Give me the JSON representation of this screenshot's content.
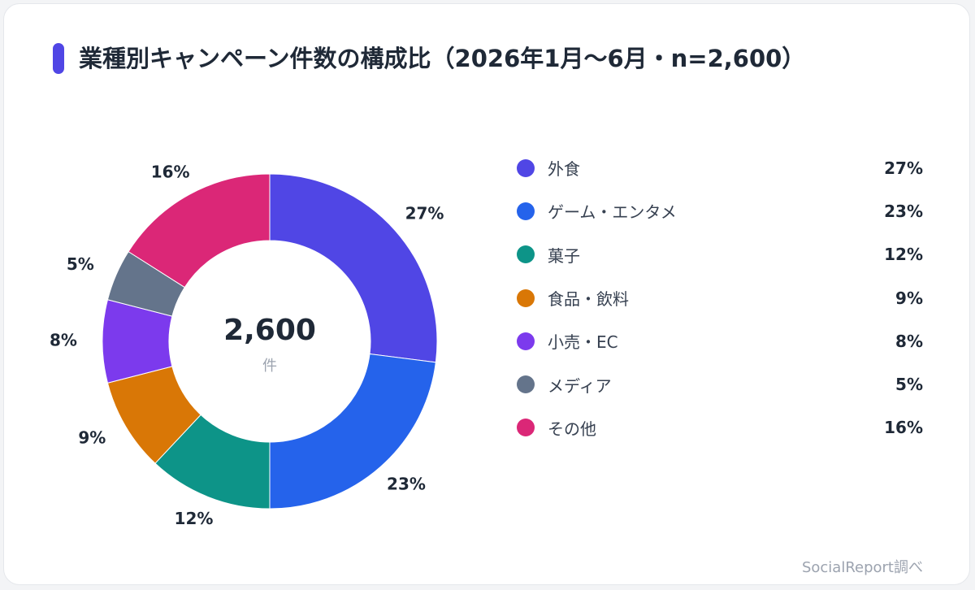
{
  "header": {
    "title": "業種別キャンペーン件数の構成比（2026年1月〜6月・n=2,600）"
  },
  "center": {
    "value": "2,600",
    "unit": "件"
  },
  "source": "SocialReport調べ",
  "chart_data": {
    "type": "pie",
    "donut": true,
    "total": 2600,
    "categories": [
      "外食",
      "ゲーム・エンタメ",
      "菓子",
      "食品・飲料",
      "小売・EC",
      "メディア",
      "その他"
    ],
    "values": [
      27,
      23,
      12,
      9,
      8,
      5,
      16
    ],
    "labels": [
      "27%",
      "23%",
      "12%",
      "9%",
      "8%",
      "5%",
      "16%"
    ],
    "colors": [
      "#5046e5",
      "#2563eb",
      "#0d9488",
      "#d97706",
      "#7c3aed",
      "#64748b",
      "#db2777"
    ],
    "legend": "right"
  }
}
